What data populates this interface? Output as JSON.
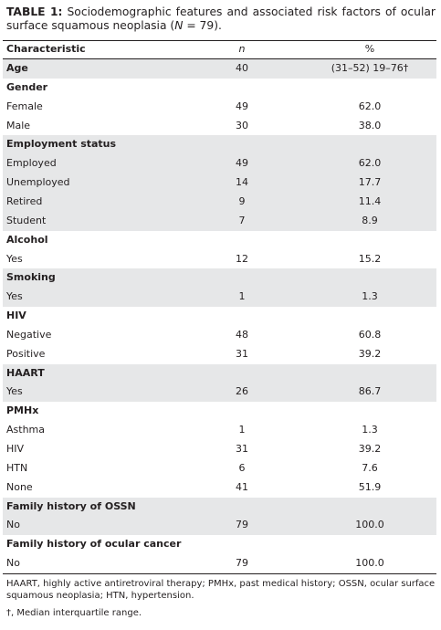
{
  "caption": {
    "label": "TABLE 1:",
    "text": "Sociodemographic features and associated risk factors of ocular surface squamous neoplasia (",
    "variable": "N",
    "text_end": " = 79)."
  },
  "table": {
    "header": [
      "Characteristic",
      "n",
      "%"
    ],
    "rows": [
      {
        "cells": [
          "Age",
          "40",
          "(31–52) 19–76†"
        ],
        "bold": true,
        "shaded": true
      },
      {
        "cells": [
          "Gender"
        ],
        "bold": true,
        "shaded": false
      },
      {
        "cells": [
          "Female",
          "49",
          "62.0"
        ],
        "bold": false,
        "shaded": false
      },
      {
        "cells": [
          "Male",
          "30",
          "38.0"
        ],
        "bold": false,
        "shaded": false
      },
      {
        "cells": [
          "Employment status"
        ],
        "bold": true,
        "shaded": true
      },
      {
        "cells": [
          "Employed",
          "49",
          "62.0"
        ],
        "bold": false,
        "shaded": true
      },
      {
        "cells": [
          "Unemployed",
          "14",
          "17.7"
        ],
        "bold": false,
        "shaded": true
      },
      {
        "cells": [
          "Retired",
          "9",
          "11.4"
        ],
        "bold": false,
        "shaded": true
      },
      {
        "cells": [
          "Student",
          "7",
          "8.9"
        ],
        "bold": false,
        "shaded": true
      },
      {
        "cells": [
          "Alcohol"
        ],
        "bold": true,
        "shaded": false
      },
      {
        "cells": [
          "Yes",
          "12",
          "15.2"
        ],
        "bold": false,
        "shaded": false
      },
      {
        "cells": [
          "Smoking"
        ],
        "bold": true,
        "shaded": true
      },
      {
        "cells": [
          "Yes",
          "1",
          "1.3"
        ],
        "bold": false,
        "shaded": true
      },
      {
        "cells": [
          "HIV"
        ],
        "bold": true,
        "shaded": false
      },
      {
        "cells": [
          "Negative",
          "48",
          "60.8"
        ],
        "bold": false,
        "shaded": false
      },
      {
        "cells": [
          "Positive",
          "31",
          "39.2"
        ],
        "bold": false,
        "shaded": false
      },
      {
        "cells": [
          "HAART"
        ],
        "bold": true,
        "shaded": true
      },
      {
        "cells": [
          "Yes",
          "26",
          "86.7"
        ],
        "bold": false,
        "shaded": true
      },
      {
        "cells": [
          "PMHx"
        ],
        "bold": true,
        "shaded": false
      },
      {
        "cells": [
          "Asthma",
          "1",
          "1.3"
        ],
        "bold": false,
        "shaded": false
      },
      {
        "cells": [
          "HIV",
          "31",
          "39.2"
        ],
        "bold": false,
        "shaded": false
      },
      {
        "cells": [
          "HTN",
          "6",
          "7.6"
        ],
        "bold": false,
        "shaded": false
      },
      {
        "cells": [
          "None",
          "41",
          "51.9"
        ],
        "bold": false,
        "shaded": false
      },
      {
        "cells": [
          "Family history of OSSN"
        ],
        "bold": true,
        "shaded": true
      },
      {
        "cells": [
          "No",
          "79",
          "100.0"
        ],
        "bold": false,
        "shaded": true
      },
      {
        "cells": [
          "Family history of ocular cancer"
        ],
        "bold": true,
        "shaded": false
      },
      {
        "cells": [
          "No",
          "79",
          "100.0"
        ],
        "bold": false,
        "shaded": false
      }
    ]
  },
  "footnotes": [
    "HAART, highly active antiretroviral therapy; PMHx, past medical history; OSSN, ocular surface squamous neoplasia; HTN, hypertension.",
    "†, Median interquartile range."
  ]
}
